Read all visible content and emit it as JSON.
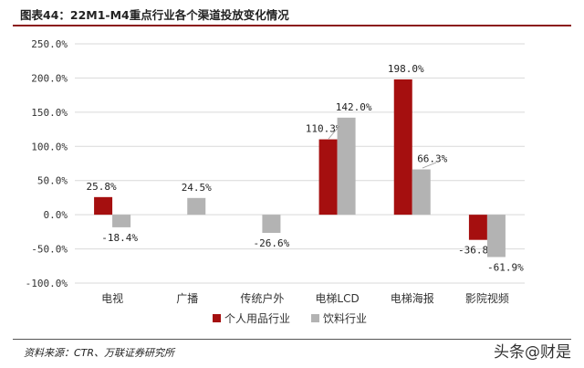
{
  "header": {
    "title": "图表44：22M1-M4重点行业各个渠道投放变化情况"
  },
  "footer": {
    "source": "资料来源：CTR、万联证券研究所",
    "watermark": "头条@财是"
  },
  "colors": {
    "series1": "#a50f0f",
    "series2": "#b3b3b3"
  },
  "chart_data": {
    "type": "bar",
    "categories": [
      "电视",
      "广播",
      "传统户外",
      "电梯LCD",
      "电梯海报",
      "影院视频"
    ],
    "series": [
      {
        "name": "个人用品行业",
        "values": [
          25.8,
          null,
          null,
          110.3,
          198.0,
          -36.8
        ],
        "labels": [
          "25.8%",
          "",
          "",
          "110.3%",
          "198.0%",
          "-36.8%"
        ]
      },
      {
        "name": "饮料行业",
        "values": [
          -18.4,
          24.5,
          -26.6,
          142.0,
          66.3,
          -61.9
        ],
        "labels": [
          "-18.4%",
          "24.5%",
          "-26.6%",
          "142.0%",
          "66.3%",
          "-61.9%"
        ]
      }
    ],
    "ylim": [
      -100,
      250
    ],
    "yticks": [
      250,
      200,
      150,
      100,
      50,
      0,
      -50,
      -100
    ],
    "ytick_labels": [
      "250.0%",
      "200.0%",
      "150.0%",
      "100.0%",
      "50.0%",
      "0.0%",
      "-50.0%",
      "-100.0%"
    ],
    "grid": true,
    "legend_position": "bottom"
  }
}
